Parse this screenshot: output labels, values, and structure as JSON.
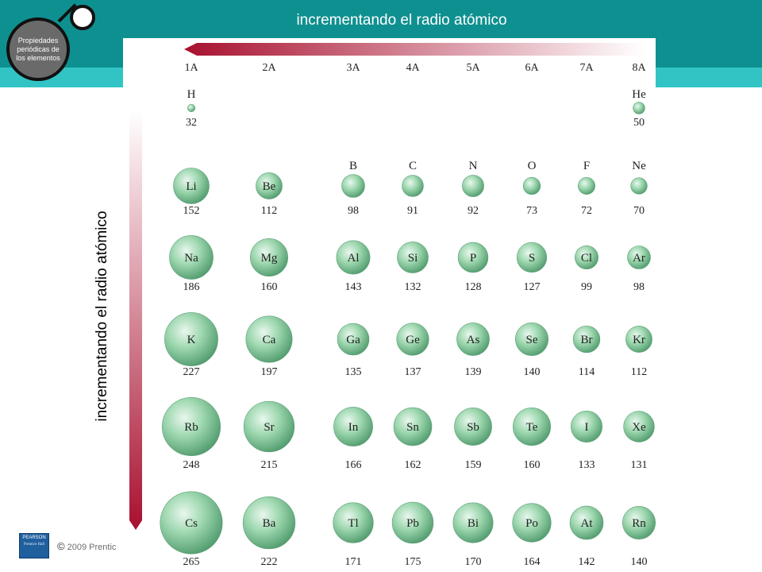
{
  "header": {
    "badge_text": "Propiedades periódicas de los elementos",
    "title_top": "incrementando el radio atómico",
    "title_left": "incrementando el radio atómico"
  },
  "footer": {
    "copyright_symbol": "©",
    "copyright_text": "2009 Prentic",
    "publisher_logo_word": "PEARSON",
    "publisher_logo_sub": "Prentice Hall"
  },
  "colors": {
    "band_dark": "#0f9090",
    "band_light": "#32c4c4",
    "arrow_red": "#b0153a",
    "sphere": "#8fcfa2"
  },
  "arrows": {
    "horizontal": "right-to-left",
    "vertical": "top-to-bottom"
  },
  "chart_data": {
    "type": "table",
    "groups": [
      "1A",
      "2A",
      "3A",
      "4A",
      "5A",
      "6A",
      "7A",
      "8A"
    ],
    "unit": "pm",
    "elements": [
      {
        "symbol": "H",
        "radius": 32,
        "period": 1,
        "group": "1A"
      },
      {
        "symbol": "He",
        "radius": 50,
        "period": 1,
        "group": "8A"
      },
      {
        "symbol": "Li",
        "radius": 152,
        "period": 2,
        "group": "1A"
      },
      {
        "symbol": "Be",
        "radius": 112,
        "period": 2,
        "group": "2A"
      },
      {
        "symbol": "B",
        "radius": 98,
        "period": 2,
        "group": "3A"
      },
      {
        "symbol": "C",
        "radius": 91,
        "period": 2,
        "group": "4A"
      },
      {
        "symbol": "N",
        "radius": 92,
        "period": 2,
        "group": "5A"
      },
      {
        "symbol": "O",
        "radius": 73,
        "period": 2,
        "group": "6A"
      },
      {
        "symbol": "F",
        "radius": 72,
        "period": 2,
        "group": "7A"
      },
      {
        "symbol": "Ne",
        "radius": 70,
        "period": 2,
        "group": "8A"
      },
      {
        "symbol": "Na",
        "radius": 186,
        "period": 3,
        "group": "1A"
      },
      {
        "symbol": "Mg",
        "radius": 160,
        "period": 3,
        "group": "2A"
      },
      {
        "symbol": "Al",
        "radius": 143,
        "period": 3,
        "group": "3A"
      },
      {
        "symbol": "Si",
        "radius": 132,
        "period": 3,
        "group": "4A"
      },
      {
        "symbol": "P",
        "radius": 128,
        "period": 3,
        "group": "5A"
      },
      {
        "symbol": "S",
        "radius": 127,
        "period": 3,
        "group": "6A"
      },
      {
        "symbol": "Cl",
        "radius": 99,
        "period": 3,
        "group": "7A"
      },
      {
        "symbol": "Ar",
        "radius": 98,
        "period": 3,
        "group": "8A"
      },
      {
        "symbol": "K",
        "radius": 227,
        "period": 4,
        "group": "1A"
      },
      {
        "symbol": "Ca",
        "radius": 197,
        "period": 4,
        "group": "2A"
      },
      {
        "symbol": "Ga",
        "radius": 135,
        "period": 4,
        "group": "3A"
      },
      {
        "symbol": "Ge",
        "radius": 137,
        "period": 4,
        "group": "4A"
      },
      {
        "symbol": "As",
        "radius": 139,
        "period": 4,
        "group": "5A"
      },
      {
        "symbol": "Se",
        "radius": 140,
        "period": 4,
        "group": "6A"
      },
      {
        "symbol": "Br",
        "radius": 114,
        "period": 4,
        "group": "7A"
      },
      {
        "symbol": "Kr",
        "radius": 112,
        "period": 4,
        "group": "8A"
      },
      {
        "symbol": "Rb",
        "radius": 248,
        "period": 5,
        "group": "1A"
      },
      {
        "symbol": "Sr",
        "radius": 215,
        "period": 5,
        "group": "2A"
      },
      {
        "symbol": "In",
        "radius": 166,
        "period": 5,
        "group": "3A"
      },
      {
        "symbol": "Sn",
        "radius": 162,
        "period": 5,
        "group": "4A"
      },
      {
        "symbol": "Sb",
        "radius": 159,
        "period": 5,
        "group": "5A"
      },
      {
        "symbol": "Te",
        "radius": 160,
        "period": 5,
        "group": "6A"
      },
      {
        "symbol": "I",
        "radius": 133,
        "period": 5,
        "group": "7A"
      },
      {
        "symbol": "Xe",
        "radius": 131,
        "period": 5,
        "group": "8A"
      },
      {
        "symbol": "Cs",
        "radius": 265,
        "period": 6,
        "group": "1A"
      },
      {
        "symbol": "Ba",
        "radius": 222,
        "period": 6,
        "group": "2A"
      },
      {
        "symbol": "Tl",
        "radius": 171,
        "period": 6,
        "group": "3A"
      },
      {
        "symbol": "Pb",
        "radius": 175,
        "period": 6,
        "group": "4A"
      },
      {
        "symbol": "Bi",
        "radius": 170,
        "period": 6,
        "group": "5A"
      },
      {
        "symbol": "Po",
        "radius": 164,
        "period": 6,
        "group": "6A"
      },
      {
        "symbol": "At",
        "radius": 142,
        "period": 6,
        "group": "7A"
      },
      {
        "symbol": "Rn",
        "radius": 140,
        "period": 6,
        "group": "8A"
      }
    ]
  }
}
